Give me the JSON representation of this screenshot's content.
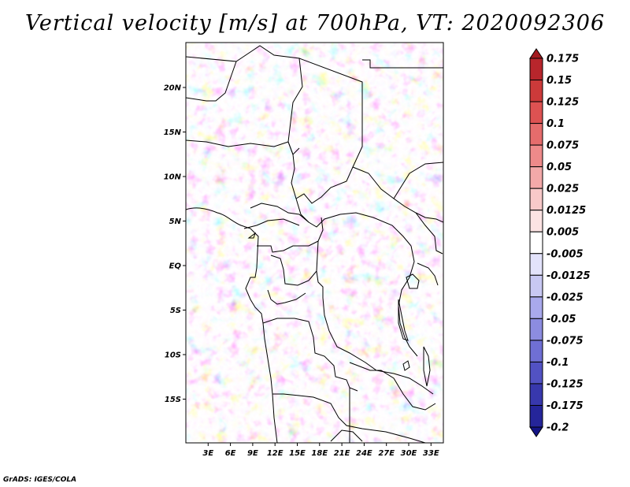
{
  "title": "Vertical velocity [m/s] at 700hPa, VT: 2020092306",
  "credit": "GrADS: IGES/COLA",
  "map": {
    "projection": "latlon",
    "lon_range": [
      0,
      35
    ],
    "lat_range": [
      -20,
      25
    ],
    "field": "vertical velocity",
    "level": "700hPa",
    "valid_time": "2020092306"
  },
  "lat_ticks": [
    {
      "lat": 20,
      "label": "20N"
    },
    {
      "lat": 15,
      "label": "15N"
    },
    {
      "lat": 10,
      "label": "10N"
    },
    {
      "lat": 5,
      "label": "5N"
    },
    {
      "lat": 0,
      "label": "EQ"
    },
    {
      "lat": -5,
      "label": "5S"
    },
    {
      "lat": -10,
      "label": "10S"
    },
    {
      "lat": -15,
      "label": "15S"
    }
  ],
  "lon_ticks": [
    {
      "lon": 3,
      "label": "3E"
    },
    {
      "lon": 6,
      "label": "6E"
    },
    {
      "lon": 9,
      "label": "9E"
    },
    {
      "lon": 12,
      "label": "12E"
    },
    {
      "lon": 15,
      "label": "15E"
    },
    {
      "lon": 18,
      "label": "18E"
    },
    {
      "lon": 21,
      "label": "21E"
    },
    {
      "lon": 24,
      "label": "24E"
    },
    {
      "lon": 27,
      "label": "27E"
    },
    {
      "lon": 30,
      "label": "30E"
    },
    {
      "lon": 33,
      "label": "33E"
    }
  ],
  "colorbar": {
    "labels": [
      "0.175",
      "0.15",
      "0.125",
      "0.1",
      "0.075",
      "0.05",
      "0.025",
      "0.0125",
      "0.005",
      "-0.005",
      "-0.0125",
      "-0.025",
      "-0.05",
      "-0.075",
      "-0.1",
      "-0.125",
      "-0.175",
      "-0.2"
    ],
    "colors": [
      "#a31a1f",
      "#b8262c",
      "#cc3a3a",
      "#dd5252",
      "#e56c6c",
      "#ee8a8a",
      "#f3a9a9",
      "#f8c9c9",
      "#fce3e3",
      "#ffffff",
      "#e3e3fb",
      "#c8c8f3",
      "#a9a9ec",
      "#8c8ce0",
      "#6f6fd4",
      "#5252c3",
      "#3838ad",
      "#25259a",
      "#141485"
    ]
  }
}
